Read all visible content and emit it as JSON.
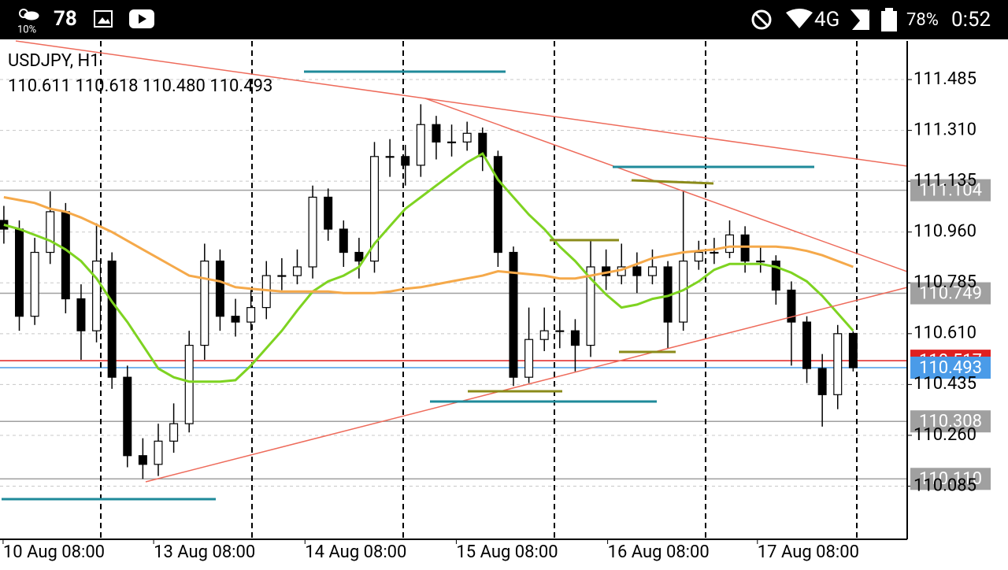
{
  "status_bar": {
    "weather": "10%",
    "notification": "78",
    "network": "4G",
    "battery": "78%",
    "time": "0:52"
  },
  "chart_data": {
    "type": "candlestick",
    "title": "USDJPY, H1",
    "subtitle": "110.611 110.618 110.480 110.493",
    "categories": [
      null,
      null,
      null,
      null,
      null,
      null,
      null,
      null,
      null,
      null,
      null,
      null,
      null,
      null,
      null,
      null,
      null,
      null,
      null,
      null,
      null,
      null,
      null,
      null,
      null,
      null,
      null,
      null,
      null,
      null,
      null,
      null,
      null,
      null,
      null,
      null,
      null,
      null,
      null,
      null,
      null,
      null,
      null,
      null,
      null,
      null,
      null,
      null,
      null,
      null,
      null,
      null,
      null,
      null,
      null,
      null
    ],
    "open": [
      111.0,
      110.97,
      110.67,
      110.89,
      111.03,
      110.73,
      110.62,
      110.86,
      110.46,
      110.19,
      110.16,
      110.24,
      110.3,
      110.57,
      110.86,
      110.67,
      110.65,
      110.7,
      110.81,
      110.81,
      110.84,
      111.08,
      110.97,
      110.89,
      110.86,
      111.22,
      111.22,
      111.19,
      111.33,
      111.27,
      111.27,
      111.3,
      111.22,
      110.89,
      110.46,
      110.59,
      110.62,
      110.62,
      110.57,
      110.84,
      110.81,
      110.84,
      110.81,
      110.84,
      110.65,
      110.86,
      110.89,
      110.89,
      110.95,
      110.86,
      110.86,
      110.76,
      110.65,
      110.49,
      110.4,
      110.611
    ],
    "high": [
      111.05,
      111.0,
      110.94,
      111.1,
      111.06,
      110.78,
      110.99,
      110.89,
      110.5,
      110.25,
      110.3,
      110.37,
      110.62,
      110.92,
      110.9,
      110.73,
      110.76,
      110.86,
      110.87,
      110.9,
      111.12,
      111.11,
      111.0,
      110.94,
      111.27,
      111.28,
      111.26,
      111.4,
      111.36,
      111.33,
      111.34,
      111.32,
      111.24,
      110.91,
      110.7,
      110.7,
      110.69,
      110.66,
      110.93,
      110.9,
      110.92,
      110.89,
      110.9,
      110.86,
      111.1,
      110.93,
      110.94,
      111.0,
      110.98,
      110.91,
      110.88,
      110.79,
      110.67,
      110.54,
      110.64,
      110.618
    ],
    "low": [
      110.92,
      110.62,
      110.64,
      110.85,
      110.68,
      110.52,
      110.58,
      110.42,
      110.15,
      110.11,
      110.12,
      110.2,
      110.27,
      110.52,
      110.62,
      110.6,
      110.62,
      110.66,
      110.76,
      110.78,
      110.8,
      110.93,
      110.84,
      110.8,
      110.82,
      111.15,
      111.12,
      111.15,
      111.21,
      111.22,
      111.24,
      111.17,
      110.84,
      110.43,
      110.44,
      110.55,
      110.56,
      110.48,
      110.53,
      110.76,
      110.78,
      110.75,
      110.78,
      110.56,
      110.62,
      110.83,
      110.85,
      110.87,
      110.82,
      110.82,
      110.71,
      110.5,
      110.44,
      110.29,
      110.35,
      110.48
    ],
    "close": [
      110.97,
      110.67,
      110.89,
      111.03,
      110.73,
      110.62,
      110.86,
      110.46,
      110.19,
      110.16,
      110.24,
      110.3,
      110.57,
      110.86,
      110.67,
      110.65,
      110.7,
      110.81,
      110.81,
      110.84,
      111.08,
      110.97,
      110.89,
      110.86,
      111.22,
      111.22,
      111.19,
      111.33,
      111.27,
      111.27,
      111.3,
      111.22,
      110.89,
      110.46,
      110.59,
      110.62,
      110.62,
      110.57,
      110.84,
      110.81,
      110.84,
      110.81,
      110.84,
      110.65,
      110.86,
      110.89,
      110.89,
      110.95,
      110.86,
      110.86,
      110.76,
      110.65,
      110.49,
      110.4,
      110.61,
      110.493
    ],
    "lines": [
      {
        "color": "#7ed321",
        "values": [
          110.985,
          110.97,
          110.95,
          110.93,
          110.9,
          110.86,
          110.8,
          110.72,
          110.65,
          110.57,
          110.49,
          110.46,
          110.445,
          110.445,
          110.445,
          110.45,
          110.5,
          110.56,
          110.62,
          110.69,
          110.755,
          110.79,
          110.81,
          110.84,
          110.92,
          110.98,
          111.04,
          111.08,
          111.12,
          111.16,
          111.2,
          111.23,
          111.14,
          111.08,
          111.02,
          110.97,
          110.91,
          110.86,
          110.8,
          110.745,
          110.7,
          110.71,
          110.73,
          110.74,
          110.76,
          110.79,
          110.83,
          110.85,
          110.85,
          110.85,
          110.84,
          110.82,
          110.79,
          110.74,
          110.68,
          110.62
        ]
      },
      {
        "color": "#f5a94a",
        "values": [
          111.08,
          111.07,
          111.06,
          111.04,
          111.03,
          111.01,
          110.985,
          110.96,
          110.93,
          110.9,
          110.87,
          110.84,
          110.81,
          110.8,
          110.79,
          110.77,
          110.765,
          110.76,
          110.755,
          110.755,
          110.755,
          110.755,
          110.75,
          110.75,
          110.75,
          110.755,
          110.765,
          110.77,
          110.78,
          110.79,
          110.8,
          110.81,
          110.825,
          110.82,
          110.815,
          110.81,
          110.8,
          110.8,
          110.81,
          110.82,
          110.83,
          110.85,
          110.87,
          110.88,
          110.89,
          110.895,
          110.9,
          110.91,
          110.91,
          110.91,
          110.91,
          110.905,
          110.895,
          110.88,
          110.86,
          110.84
        ]
      }
    ],
    "levels": [
      {
        "value": 111.104,
        "color": "#a0a0a0"
      },
      {
        "value": 110.749,
        "color": "#a0a0a0"
      },
      {
        "value": 110.308,
        "color": "#a0a0a0"
      },
      {
        "value": {
          "value": 110.11,
          "label": "110.110"
        },
        "color": "#a0a0a0"
      },
      {
        "value": 110.517,
        "color": "#e02020"
      },
      {
        "value": 110.493,
        "color": "#4a9be8"
      }
    ],
    "bull_color": "#ffffff",
    "bear_color": "#000000",
    "xlim": [
      -0.25,
      58.5
    ],
    "xticks": [
      {
        "value": -0.05,
        "label": "10 Aug 08:00"
      },
      {
        "value": 9.7,
        "label": "13 Aug 08:00"
      },
      {
        "value": 19.5,
        "label": "14 Aug 08:00"
      },
      {
        "value": 29.3,
        "label": "15 Aug 08:00"
      },
      {
        "value": 39.1,
        "label": "16 Aug 08:00"
      },
      {
        "value": 48.8,
        "label": "17 Aug 08:00"
      }
    ],
    "ylim": [
      109.902,
      111.618
    ],
    "yticks": [
      111.485,
      {
        "value": 111.31,
        "label": "111.310"
      },
      111.135,
      {
        "value": 110.96,
        "label": "110.960"
      },
      110.785,
      {
        "value": 110.61,
        "label": "110.610"
      },
      110.435,
      {
        "value": 110.26,
        "label": "110.260"
      },
      110.085
    ],
    "grid": true
  }
}
